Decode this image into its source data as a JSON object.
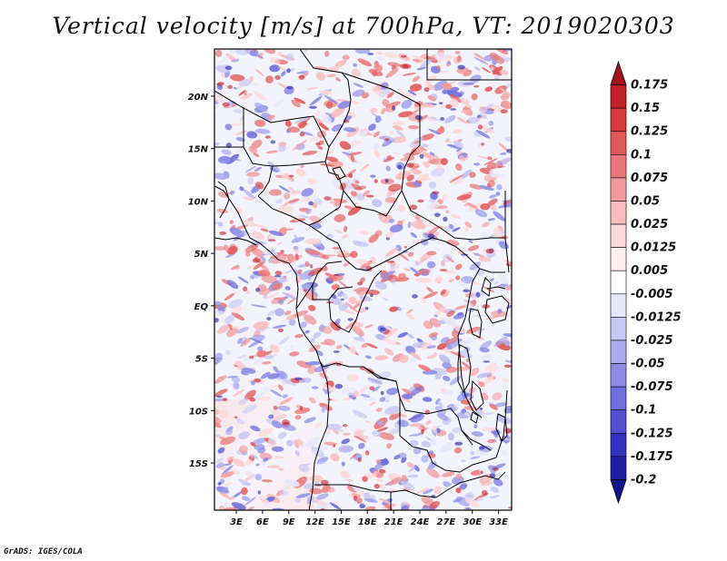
{
  "title": "Vertical velocity [m/s] at 700hPa, VT: 2019020303",
  "credit": "GrADS: IGES/COLA",
  "map": {
    "variable": "Vertical velocity",
    "units": "m/s",
    "level": "700hPa",
    "valid_time": "2019020303",
    "lat_labels": [
      "20N",
      "15N",
      "10N",
      "5N",
      "EQ",
      "5S",
      "10S",
      "15S"
    ],
    "lon_labels": [
      "3E",
      "6E",
      "9E",
      "12E",
      "15E",
      "18E",
      "21E",
      "24E",
      "27E",
      "30E",
      "33E"
    ],
    "lat_values": [
      20,
      15,
      10,
      5,
      0,
      -5,
      -10,
      -15
    ],
    "lon_values": [
      3,
      6,
      9,
      12,
      15,
      18,
      21,
      24,
      27,
      30,
      33
    ],
    "lat_range": [
      -19.5,
      24.5
    ],
    "lon_range": [
      0.5,
      34.5
    ]
  },
  "colorbar": {
    "levels": [
      "0.175",
      "0.15",
      "0.125",
      "0.1",
      "0.075",
      "0.05",
      "0.025",
      "0.0125",
      "0.005",
      "-0.005",
      "-0.0125",
      "-0.025",
      "-0.05",
      "-0.075",
      "-0.1",
      "-0.125",
      "-0.175",
      "-0.2"
    ],
    "colors": [
      "#a0141e",
      "#c02028",
      "#d63a3a",
      "#e05858",
      "#ea7878",
      "#f29a9a",
      "#f8bcbc",
      "#fcd8d8",
      "#fff0f0",
      "#ffffff",
      "#e6e6fa",
      "#c8c8f4",
      "#aaaaee",
      "#8c8ce6",
      "#6e6ede",
      "#5050d0",
      "#3232c0",
      "#1e1ea6",
      "#14148c"
    ]
  },
  "colors": {
    "positive_strong": "#c02028",
    "negative_strong": "#1e1ea6",
    "boundary": "#000000"
  }
}
